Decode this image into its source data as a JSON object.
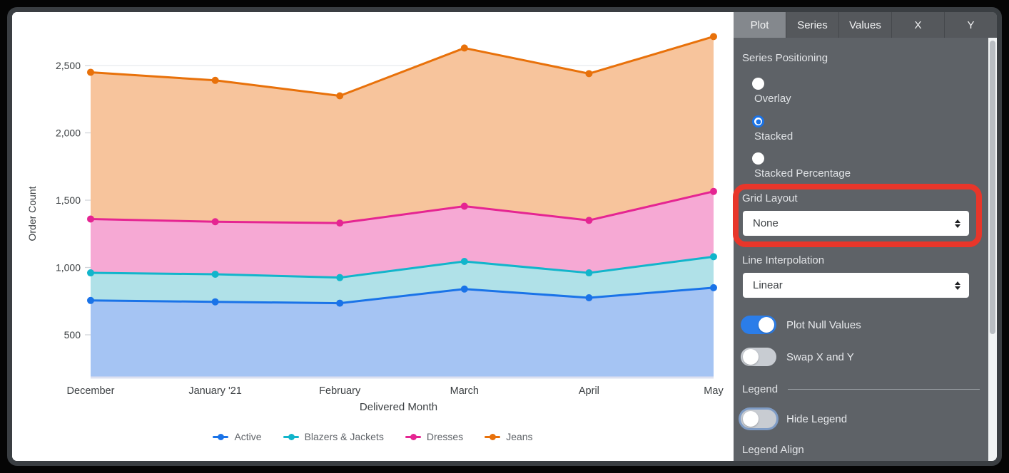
{
  "panel": {
    "tabs": [
      {
        "label": "Plot",
        "active": true
      },
      {
        "label": "Series",
        "active": false
      },
      {
        "label": "Values",
        "active": false
      },
      {
        "label": "X",
        "active": false
      },
      {
        "label": "Y",
        "active": false
      }
    ],
    "series_positioning": {
      "label": "Series Positioning",
      "options": [
        {
          "label": "Overlay",
          "selected": false
        },
        {
          "label": "Stacked",
          "selected": true
        },
        {
          "label": "Stacked Percentage",
          "selected": false
        }
      ]
    },
    "grid_layout": {
      "label": "Grid Layout",
      "value": "None"
    },
    "line_interpolation": {
      "label": "Line Interpolation",
      "value": "Linear"
    },
    "toggles": [
      {
        "label": "Plot Null Values",
        "on": true
      },
      {
        "label": "Swap X and Y",
        "on": false
      }
    ],
    "legend_header": "Legend",
    "hide_legend": {
      "label": "Hide Legend",
      "on": false
    },
    "legend_align_label": "Legend Align",
    "colors": {
      "accent": "#1a73e8",
      "panel_bg": "#5e6267",
      "tab_active_bg": "#84888d"
    }
  },
  "annotation": {
    "highlights": "Grid Layout dropdown",
    "color": "#e8362a"
  },
  "chart_data": {
    "type": "area",
    "stacked": true,
    "xlabel": "Delivered Month",
    "ylabel": "Order Count",
    "categories": [
      "December",
      "January '21",
      "February",
      "March",
      "April",
      "May"
    ],
    "y_ticks": [
      {
        "value": 500,
        "label": "500"
      },
      {
        "value": 1000,
        "label": "1,000"
      },
      {
        "value": 1500,
        "label": "1,500"
      },
      {
        "value": 2000,
        "label": "2,000"
      },
      {
        "value": 2500,
        "label": "2,500"
      }
    ],
    "ylim": [
      190,
      2770
    ],
    "grid": true,
    "legend_position": "bottom",
    "series": [
      {
        "name": "Active",
        "color": "#1a73e8",
        "fill": "#a5c4f3",
        "values": [
          755,
          745,
          735,
          840,
          775,
          850
        ],
        "stacked_top": [
          755,
          745,
          735,
          840,
          775,
          850
        ]
      },
      {
        "name": "Blazers & Jackets",
        "color": "#12b5cb",
        "fill": "#b0e1e8",
        "values": [
          205,
          205,
          190,
          205,
          185,
          230
        ],
        "stacked_top": [
          960,
          950,
          925,
          1045,
          960,
          1080
        ]
      },
      {
        "name": "Dresses",
        "color": "#e52592",
        "fill": "#f6a9d4",
        "values": [
          400,
          390,
          405,
          410,
          390,
          485
        ],
        "stacked_top": [
          1360,
          1340,
          1330,
          1455,
          1350,
          1565
        ]
      },
      {
        "name": "Jeans",
        "color": "#e8710a",
        "fill": "#f7c49c",
        "values": [
          1090,
          1050,
          945,
          1175,
          1090,
          1150
        ],
        "stacked_top": [
          2450,
          2390,
          2275,
          2630,
          2440,
          2715
        ]
      }
    ]
  }
}
